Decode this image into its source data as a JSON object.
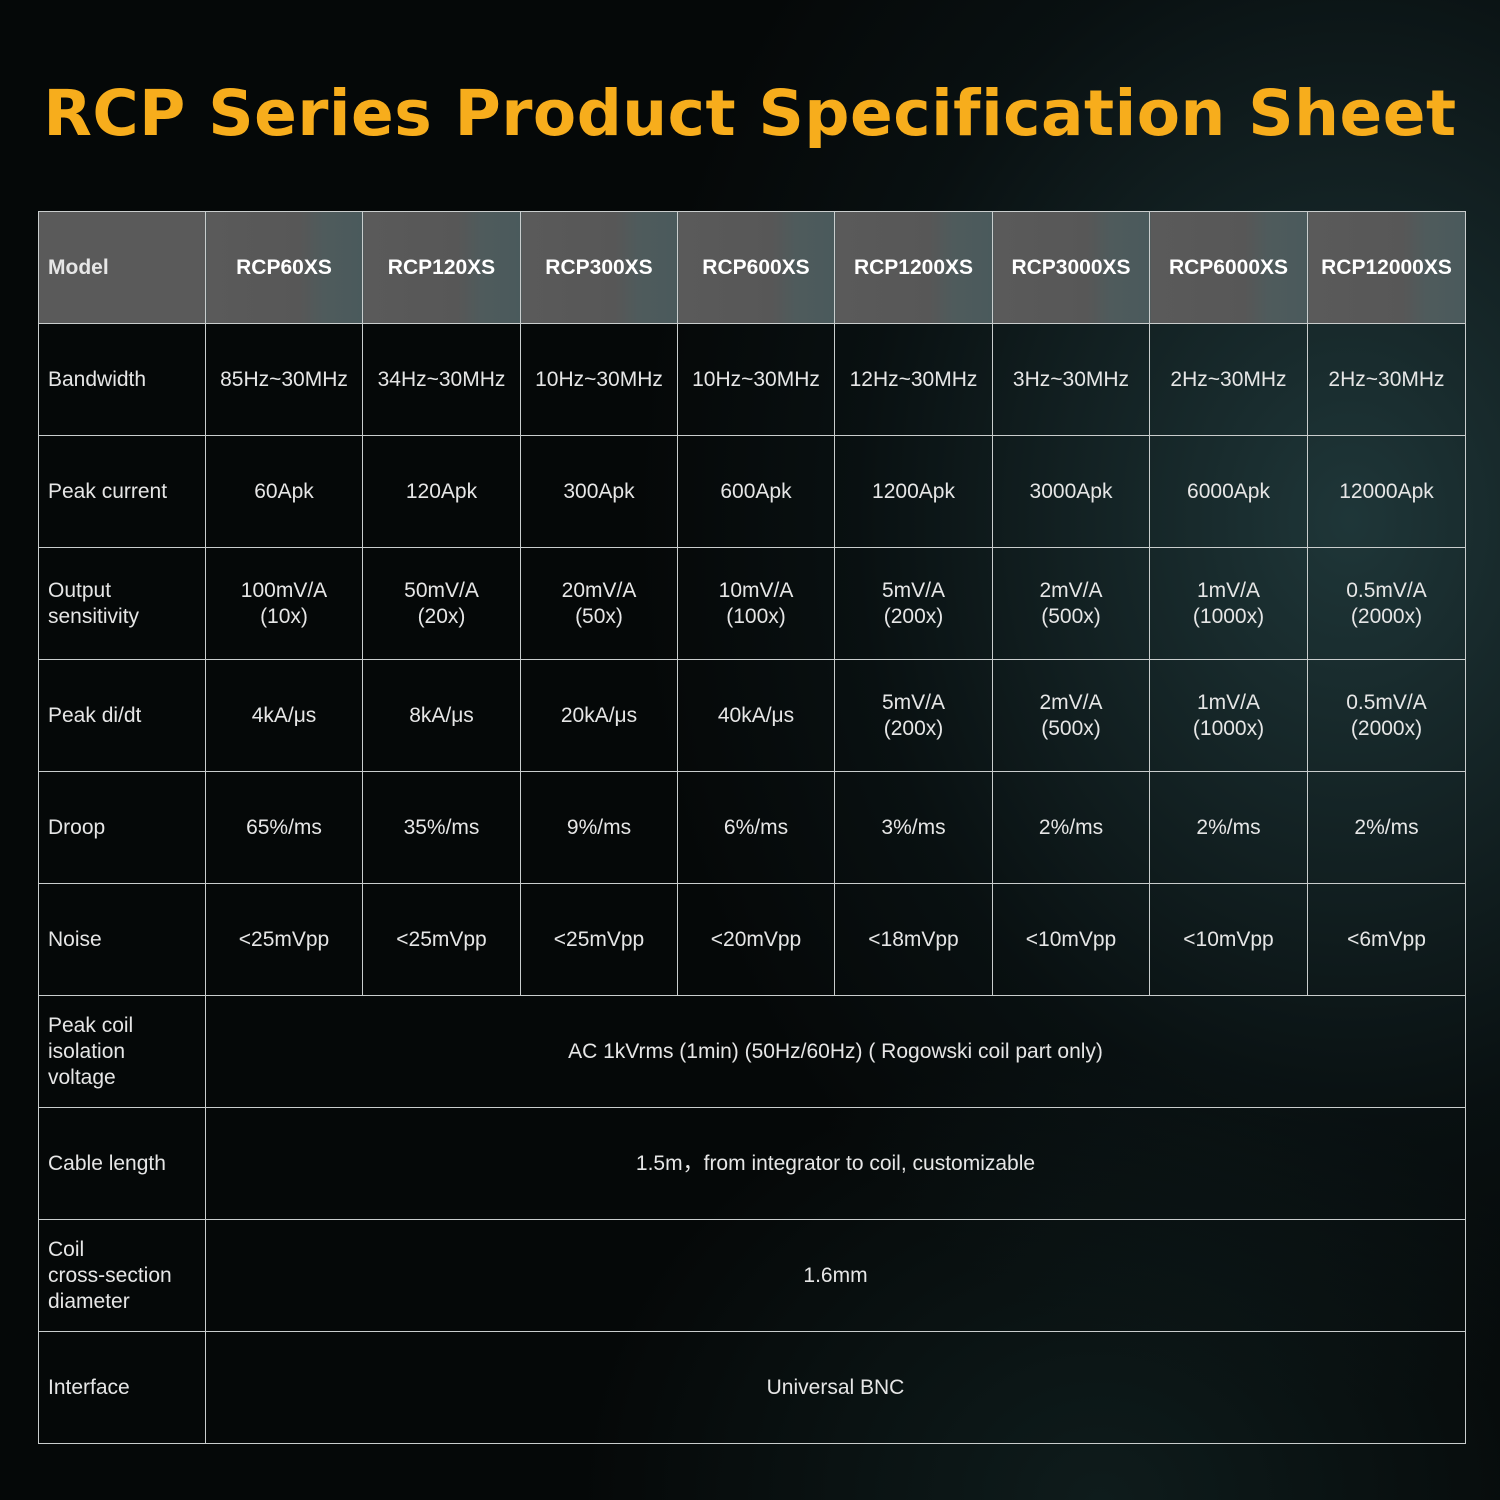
{
  "title": "RCP Series Product Specification Sheet",
  "table": {
    "header": {
      "label": "Model",
      "models": [
        "RCP60XS",
        "RCP120XS",
        "RCP300XS",
        "RCP600XS",
        "RCP1200XS",
        "RCP3000XS",
        "RCP6000XS",
        "RCP12000XS"
      ]
    },
    "bandwidth": {
      "label": "Bandwidth",
      "values": [
        "85Hz~30MHz",
        "34Hz~30MHz",
        "10Hz~30MHz",
        "10Hz~30MHz",
        "12Hz~30MHz",
        "3Hz~30MHz",
        "2Hz~30MHz",
        "2Hz~30MHz"
      ]
    },
    "peak_current": {
      "label": "Peak current",
      "values": [
        "60Apk",
        "120Apk",
        "300Apk",
        "600Apk",
        "1200Apk",
        "3000Apk",
        "6000Apk",
        "12000Apk"
      ]
    },
    "output_sensitivity": {
      "label_lines": [
        "Output",
        "sensitivity"
      ],
      "values": [
        [
          "100mV/A",
          "(10x)"
        ],
        [
          "50mV/A",
          "(20x)"
        ],
        [
          "20mV/A",
          "(50x)"
        ],
        [
          "10mV/A",
          "(100x)"
        ],
        [
          "5mV/A",
          "(200x)"
        ],
        [
          "2mV/A",
          "(500x)"
        ],
        [
          "1mV/A",
          "(1000x)"
        ],
        [
          "0.5mV/A",
          "(2000x)"
        ]
      ]
    },
    "peak_di_dt": {
      "label": "Peak di/dt",
      "values": [
        "4kA/μs",
        "8kA/μs",
        "20kA/μs",
        "40kA/μs"
      ],
      "values_two_line": [
        [
          "5mV/A",
          "(200x)"
        ],
        [
          "2mV/A",
          "(500x)"
        ],
        [
          "1mV/A",
          "(1000x)"
        ],
        [
          "0.5mV/A",
          "(2000x)"
        ]
      ]
    },
    "droop": {
      "label": "Droop",
      "values": [
        "65%/ms",
        "35%/ms",
        "9%/ms",
        "6%/ms",
        "3%/ms",
        "2%/ms",
        "2%/ms",
        "2%/ms"
      ]
    },
    "noise": {
      "label": "Noise",
      "values": [
        "<25mVpp",
        "<25mVpp",
        "<25mVpp",
        "<20mVpp",
        "<18mVpp",
        "<10mVpp",
        "<10mVpp",
        "<6mVpp"
      ]
    },
    "isolation": {
      "label_lines": [
        "Peak coil",
        "isolation",
        "voltage"
      ],
      "value": "AC 1kVrms (1min) (50Hz/60Hz) ( Rogowski coil part only)"
    },
    "cable_length": {
      "label": "Cable length",
      "value": "1.5m，from integrator to coil, customizable"
    },
    "coil_diameter": {
      "label_lines": [
        "Coil",
        "cross-section",
        "diameter"
      ],
      "value": "1.6mm"
    },
    "interface": {
      "label": "Interface",
      "value": "Universal BNC"
    }
  }
}
